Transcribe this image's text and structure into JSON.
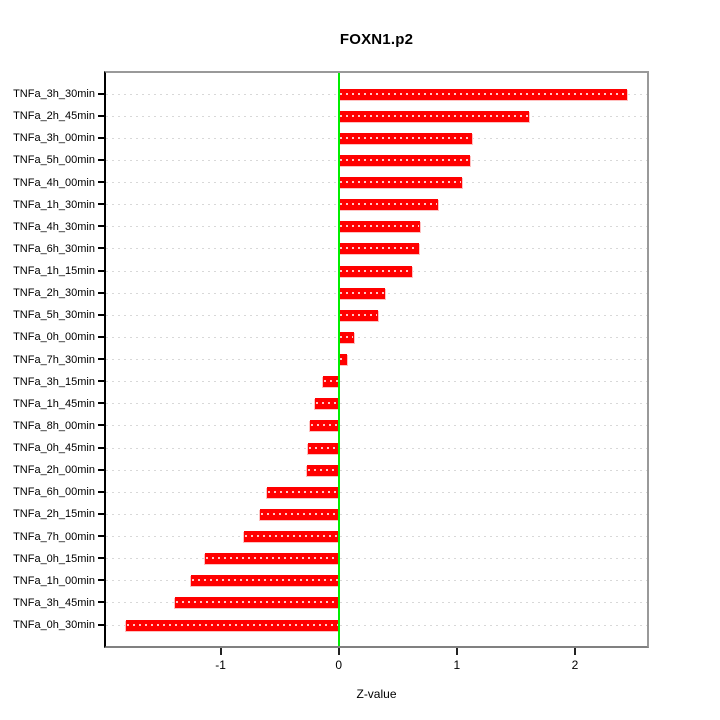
{
  "title": "FOXN1.p2",
  "chart_data": {
    "type": "bar",
    "orientation": "horizontal",
    "title": "FOXN1.p2",
    "xlabel": "Z-value",
    "ylabel": "",
    "xlim": [
      -1.97,
      2.61
    ],
    "x_ticks": [
      -1,
      0,
      1,
      2
    ],
    "x_tick_labels": [
      "-1",
      "0",
      "1",
      "2"
    ],
    "grid": "dotted-horizontal-per-row",
    "legend": "none",
    "bar_color": "#ff0000",
    "bar_edge_color": "#ffc0c0",
    "zero_line_color": "#00ee00",
    "box_color": "#999999",
    "categories": [
      "TNFa_3h_30min",
      "TNFa_2h_45min",
      "TNFa_3h_00min",
      "TNFa_5h_00min",
      "TNFa_4h_00min",
      "TNFa_1h_30min",
      "TNFa_4h_30min",
      "TNFa_6h_30min",
      "TNFa_1h_15min",
      "TNFa_2h_30min",
      "TNFa_5h_30min",
      "TNFa_0h_00min",
      "TNFa_7h_30min",
      "TNFa_3h_15min",
      "TNFa_1h_45min",
      "TNFa_8h_00min",
      "TNFa_0h_45min",
      "TNFa_2h_00min",
      "TNFa_6h_00min",
      "TNFa_2h_15min",
      "TNFa_7h_00min",
      "TNFa_0h_15min",
      "TNFa_1h_00min",
      "TNFa_3h_45min",
      "TNFa_0h_30min"
    ],
    "values": [
      2.44,
      1.61,
      1.13,
      1.11,
      1.04,
      0.84,
      0.69,
      0.68,
      0.62,
      0.39,
      0.33,
      0.13,
      0.07,
      -0.13,
      -0.2,
      -0.24,
      -0.26,
      -0.27,
      -0.61,
      -0.67,
      -0.8,
      -1.13,
      -1.25,
      -1.39,
      -1.8
    ]
  }
}
